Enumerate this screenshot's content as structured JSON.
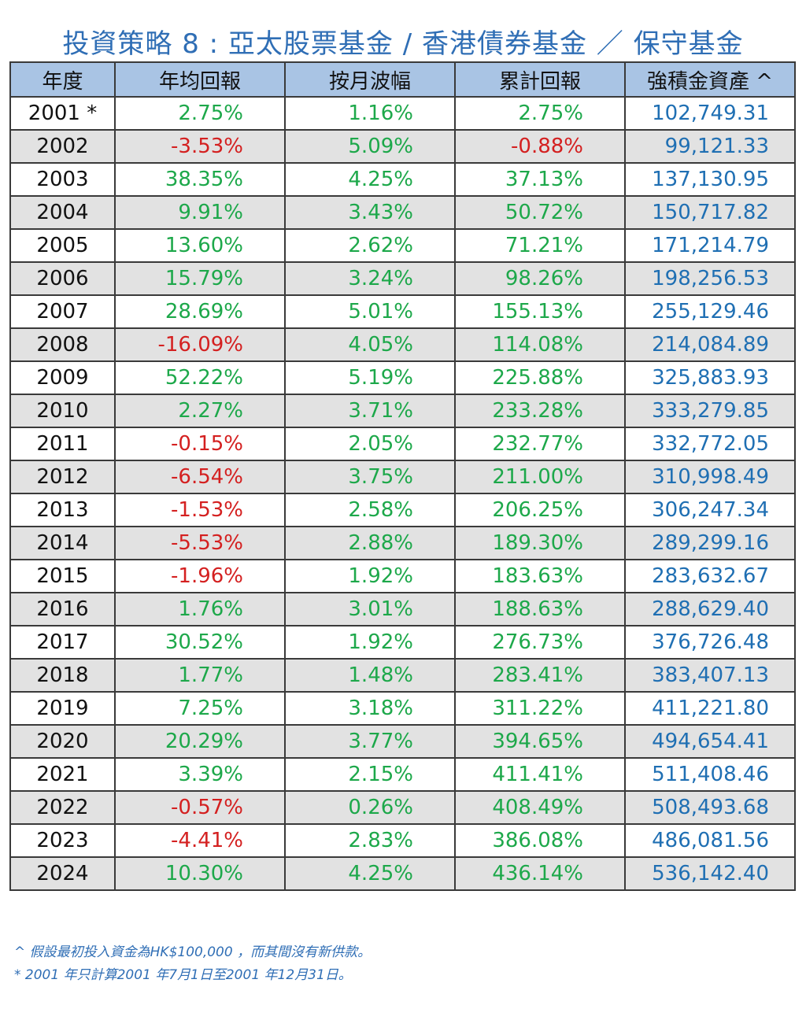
{
  "title": "投資策略 8 : 亞太股票基金 / 香港債券基金 ／ 保守基金",
  "headers": [
    "年度",
    "年均回報",
    "按月波幅",
    "累計回報",
    "強積金資產 ^"
  ],
  "colors": {
    "positive": "#1da84a",
    "negative": "#d42020",
    "asset": "#1f6fb3",
    "header_bg": "#a9c4e4",
    "title": "#2f6eb5"
  },
  "rows": [
    {
      "year": "2001 *",
      "annual": "2.75%",
      "volatility": "1.16%",
      "cumulative": "2.75%",
      "asset": "102,749.31"
    },
    {
      "year": "2002",
      "annual": "-3.53%",
      "volatility": "5.09%",
      "cumulative": "-0.88%",
      "asset": "99,121.33"
    },
    {
      "year": "2003",
      "annual": "38.35%",
      "volatility": "4.25%",
      "cumulative": "37.13%",
      "asset": "137,130.95"
    },
    {
      "year": "2004",
      "annual": "9.91%",
      "volatility": "3.43%",
      "cumulative": "50.72%",
      "asset": "150,717.82"
    },
    {
      "year": "2005",
      "annual": "13.60%",
      "volatility": "2.62%",
      "cumulative": "71.21%",
      "asset": "171,214.79"
    },
    {
      "year": "2006",
      "annual": "15.79%",
      "volatility": "3.24%",
      "cumulative": "98.26%",
      "asset": "198,256.53"
    },
    {
      "year": "2007",
      "annual": "28.69%",
      "volatility": "5.01%",
      "cumulative": "155.13%",
      "asset": "255,129.46"
    },
    {
      "year": "2008",
      "annual": "-16.09%",
      "volatility": "4.05%",
      "cumulative": "114.08%",
      "asset": "214,084.89"
    },
    {
      "year": "2009",
      "annual": "52.22%",
      "volatility": "5.19%",
      "cumulative": "225.88%",
      "asset": "325,883.93"
    },
    {
      "year": "2010",
      "annual": "2.27%",
      "volatility": "3.71%",
      "cumulative": "233.28%",
      "asset": "333,279.85"
    },
    {
      "year": "2011",
      "annual": "-0.15%",
      "volatility": "2.05%",
      "cumulative": "232.77%",
      "asset": "332,772.05"
    },
    {
      "year": "2012",
      "annual": "-6.54%",
      "volatility": "3.75%",
      "cumulative": "211.00%",
      "asset": "310,998.49"
    },
    {
      "year": "2013",
      "annual": "-1.53%",
      "volatility": "2.58%",
      "cumulative": "206.25%",
      "asset": "306,247.34"
    },
    {
      "year": "2014",
      "annual": "-5.53%",
      "volatility": "2.88%",
      "cumulative": "189.30%",
      "asset": "289,299.16"
    },
    {
      "year": "2015",
      "annual": "-1.96%",
      "volatility": "1.92%",
      "cumulative": "183.63%",
      "asset": "283,632.67"
    },
    {
      "year": "2016",
      "annual": "1.76%",
      "volatility": "3.01%",
      "cumulative": "188.63%",
      "asset": "288,629.40"
    },
    {
      "year": "2017",
      "annual": "30.52%",
      "volatility": "1.92%",
      "cumulative": "276.73%",
      "asset": "376,726.48"
    },
    {
      "year": "2018",
      "annual": "1.77%",
      "volatility": "1.48%",
      "cumulative": "283.41%",
      "asset": "383,407.13"
    },
    {
      "year": "2019",
      "annual": "7.25%",
      "volatility": "3.18%",
      "cumulative": "311.22%",
      "asset": "411,221.80"
    },
    {
      "year": "2020",
      "annual": "20.29%",
      "volatility": "3.77%",
      "cumulative": "394.65%",
      "asset": "494,654.41"
    },
    {
      "year": "2021",
      "annual": "3.39%",
      "volatility": "2.15%",
      "cumulative": "411.41%",
      "asset": "511,408.46"
    },
    {
      "year": "2022",
      "annual": "-0.57%",
      "volatility": "0.26%",
      "cumulative": "408.49%",
      "asset": "508,493.68"
    },
    {
      "year": "2023",
      "annual": "-4.41%",
      "volatility": "2.83%",
      "cumulative": "386.08%",
      "asset": "486,081.56"
    },
    {
      "year": "2024",
      "annual": "10.30%",
      "volatility": "4.25%",
      "cumulative": "436.14%",
      "asset": "536,142.40"
    }
  ],
  "notes": [
    "^ 假設最初投入資金為HK$100,000 ，而其間沒有新供款。",
    "* 2001 年只計算2001 年7月1日至2001 年12月31日。"
  ]
}
